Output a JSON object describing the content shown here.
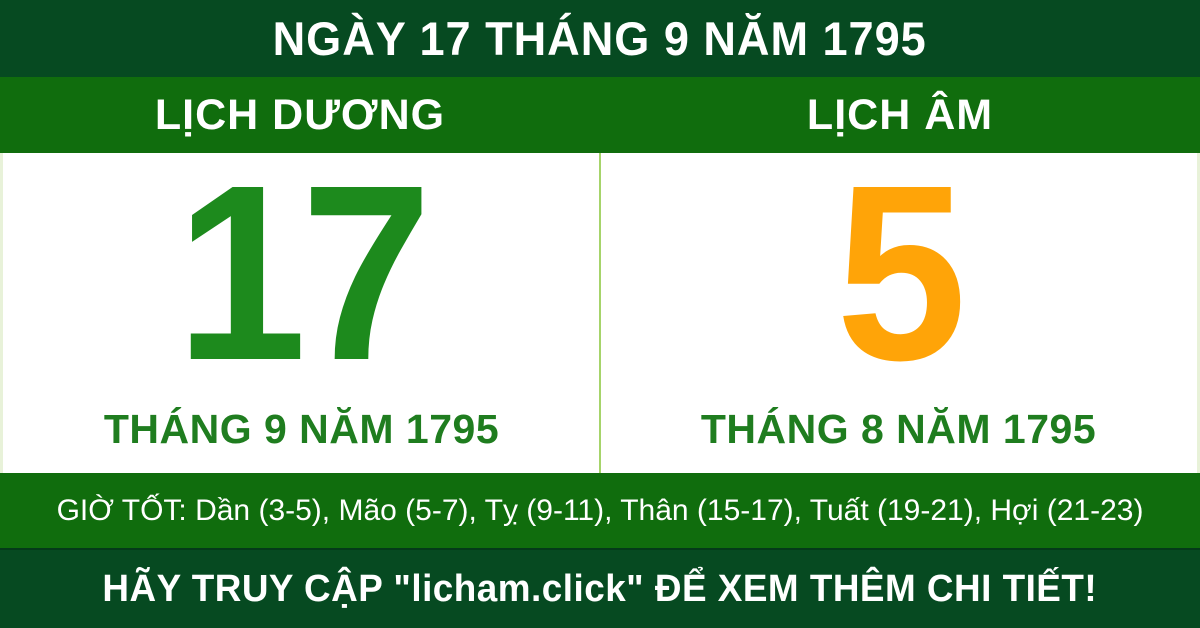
{
  "colors": {
    "dark_green": "#064a21",
    "green": "#106d0d",
    "day_green": "#1d8a1d",
    "month_green": "#1f7d1f",
    "orange": "#ffa408",
    "divider_green": "#a6d46a",
    "edge_green": "#e8f2d9",
    "text_white": "#ffffff"
  },
  "header": {
    "title": "NGÀY 17 THÁNG 9 NĂM 1795"
  },
  "calendar": {
    "solar": {
      "label": "LỊCH DƯƠNG",
      "day": "17",
      "month_year": "THÁNG 9 NĂM 1795"
    },
    "lunar": {
      "label": "LỊCH ÂM",
      "day": "5",
      "month_year": "THÁNG 8 NĂM 1795"
    }
  },
  "good_hours": {
    "label": "GIỜ TỐT:",
    "hours": [
      "Dần (3-5)",
      "Mão (5-7)",
      "Tỵ (9-11)",
      "Thân (15-17)",
      "Tuất (19-21)",
      "Hợi (21-23)"
    ]
  },
  "footer": {
    "text": "HÃY TRUY CẬP \"licham.click\" ĐỂ XEM THÊM CHI TIẾT!"
  }
}
